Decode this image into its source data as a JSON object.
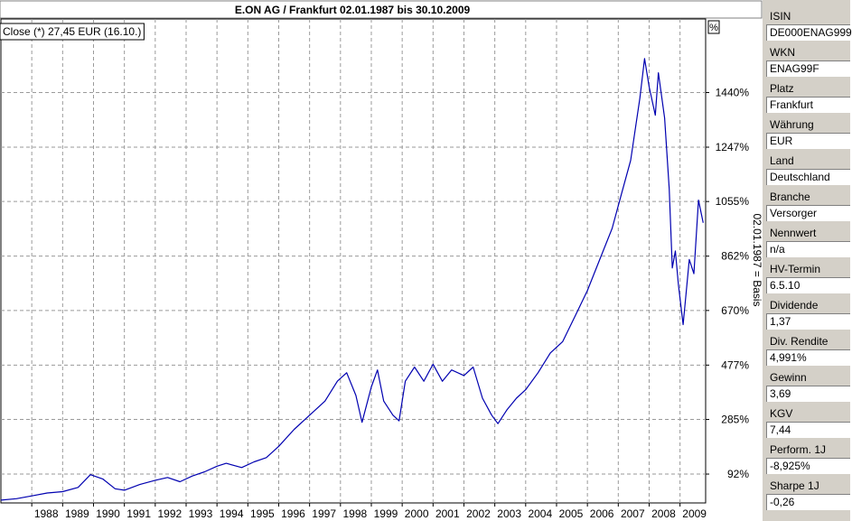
{
  "chart_data": {
    "type": "line",
    "title": "E.ON AG / Frankfurt 02.01.1987  bis 30.10.2009",
    "legend": "Close (*) 27,45 EUR (16.10.)",
    "y_unit_label": "%",
    "y_axis_caption": "02.01.1987 = Basis",
    "x_ticks": [
      "1988",
      "1989",
      "1990",
      "1991",
      "1992",
      "1993",
      "1994",
      "1995",
      "1996",
      "1997",
      "1998",
      "1999",
      "2000",
      "2001",
      "2002",
      "2003",
      "2004",
      "2005",
      "2006",
      "2007",
      "2008",
      "2009"
    ],
    "y_ticks": [
      {
        "value": 92,
        "label": "92%"
      },
      {
        "value": 285,
        "label": "285%"
      },
      {
        "value": 477,
        "label": "477%"
      },
      {
        "value": 670,
        "label": "670%"
      },
      {
        "value": 862,
        "label": "862%"
      },
      {
        "value": 1055,
        "label": "1055%"
      },
      {
        "value": 1247,
        "label": "1247%"
      },
      {
        "value": 1440,
        "label": "1440%"
      }
    ],
    "x_range": [
      1987.0,
      2009.83
    ],
    "y_range": [
      -10,
      1700
    ],
    "grid": true,
    "series_color": "#0000b0",
    "series": [
      {
        "name": "Close",
        "points": [
          [
            1987.0,
            0
          ],
          [
            1987.5,
            5
          ],
          [
            1988.0,
            15
          ],
          [
            1988.5,
            25
          ],
          [
            1989.0,
            30
          ],
          [
            1989.5,
            45
          ],
          [
            1989.9,
            90
          ],
          [
            1990.3,
            75
          ],
          [
            1990.7,
            40
          ],
          [
            1991.0,
            35
          ],
          [
            1991.5,
            55
          ],
          [
            1992.0,
            70
          ],
          [
            1992.4,
            80
          ],
          [
            1992.8,
            65
          ],
          [
            1993.2,
            85
          ],
          [
            1993.6,
            100
          ],
          [
            1994.0,
            120
          ],
          [
            1994.3,
            130
          ],
          [
            1994.8,
            115
          ],
          [
            1995.2,
            135
          ],
          [
            1995.6,
            150
          ],
          [
            1996.0,
            190
          ],
          [
            1996.5,
            250
          ],
          [
            1997.0,
            300
          ],
          [
            1997.5,
            350
          ],
          [
            1997.9,
            420
          ],
          [
            1998.2,
            450
          ],
          [
            1998.5,
            370
          ],
          [
            1998.7,
            275
          ],
          [
            1999.0,
            400
          ],
          [
            1999.2,
            460
          ],
          [
            1999.4,
            350
          ],
          [
            1999.7,
            300
          ],
          [
            1999.9,
            280
          ],
          [
            2000.1,
            420
          ],
          [
            2000.4,
            470
          ],
          [
            2000.7,
            420
          ],
          [
            2001.0,
            480
          ],
          [
            2001.3,
            420
          ],
          [
            2001.6,
            460
          ],
          [
            2002.0,
            440
          ],
          [
            2002.3,
            470
          ],
          [
            2002.6,
            360
          ],
          [
            2002.9,
            300
          ],
          [
            2003.1,
            270
          ],
          [
            2003.4,
            320
          ],
          [
            2003.7,
            360
          ],
          [
            2004.0,
            390
          ],
          [
            2004.4,
            450
          ],
          [
            2004.8,
            520
          ],
          [
            2005.2,
            560
          ],
          [
            2005.6,
            650
          ],
          [
            2006.0,
            740
          ],
          [
            2006.4,
            850
          ],
          [
            2006.8,
            960
          ],
          [
            2007.1,
            1080
          ],
          [
            2007.4,
            1200
          ],
          [
            2007.7,
            1420
          ],
          [
            2007.85,
            1560
          ],
          [
            2008.0,
            1460
          ],
          [
            2008.2,
            1360
          ],
          [
            2008.3,
            1510
          ],
          [
            2008.5,
            1350
          ],
          [
            2008.65,
            1100
          ],
          [
            2008.75,
            820
          ],
          [
            2008.85,
            880
          ],
          [
            2008.95,
            760
          ],
          [
            2009.1,
            620
          ],
          [
            2009.3,
            850
          ],
          [
            2009.45,
            800
          ],
          [
            2009.6,
            1060
          ],
          [
            2009.75,
            980
          ]
        ]
      }
    ]
  },
  "sidebar": {
    "items": [
      {
        "label": "ISIN",
        "value": "DE000ENAG999"
      },
      {
        "label": "WKN",
        "value": "ENAG99F"
      },
      {
        "label": "Platz",
        "value": "Frankfurt"
      },
      {
        "label": "Währung",
        "value": "EUR"
      },
      {
        "label": "Land",
        "value": "Deutschland"
      },
      {
        "label": "Branche",
        "value": "Versorger"
      },
      {
        "label": "Nennwert",
        "value": "n/a"
      },
      {
        "label": "HV-Termin",
        "value": "6.5.10"
      },
      {
        "label": "Dividende",
        "value": "1,37"
      },
      {
        "label": "Div. Rendite",
        "value": "4,991%"
      },
      {
        "label": "Gewinn",
        "value": "3,69"
      },
      {
        "label": "KGV",
        "value": "7,44"
      },
      {
        "label": "Perform. 1J",
        "value": "-8,925%"
      },
      {
        "label": "Sharpe 1J",
        "value": "-0,26"
      }
    ]
  }
}
